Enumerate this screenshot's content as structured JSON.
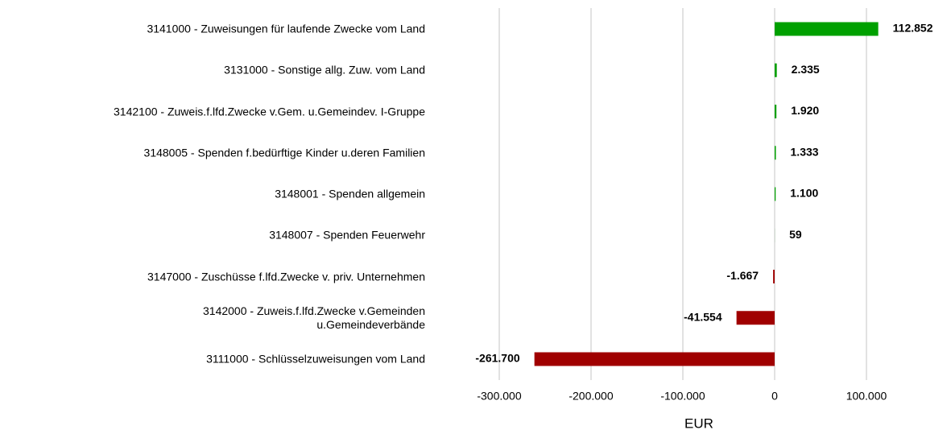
{
  "chart_data": {
    "type": "hbar",
    "categories": [
      "3141000 - Zuweisungen für laufende Zwecke vom Land",
      "3131000 - Sonstige allg. Zuw. vom Land",
      "3142100 - Zuweis.f.lfd.Zwecke v.Gem. u.Gemeindev. I-Gruppe",
      "3148005 - Spenden f.bedürftige Kinder u.deren Familien",
      "3148001 - Spenden allgemein",
      "3148007 - Spenden Feuerwehr",
      "3147000 - Zuschüsse f.lfd.Zwecke v. priv. Unternehmen",
      "3142000 - Zuweis.f.lfd.Zwecke v.Gemeinden\nu.Gemeindeverbände",
      "3111000 - Schlüsselzuweisungen vom Land"
    ],
    "values": [
      112852,
      2335,
      1920,
      1333,
      1100,
      59,
      -1667,
      -41554,
      -261700
    ],
    "value_labels": [
      "112.852",
      "2.335",
      "1.920",
      "1.333",
      "1.100",
      "59",
      "-1.667",
      "-41.554",
      "-261.700"
    ],
    "positive_color": "#00a000",
    "negative_color": "#a00000",
    "xlim": [
      -300000,
      150000
    ],
    "xticks": [
      {
        "value": -300000,
        "label": "-300.000"
      },
      {
        "value": -200000,
        "label": "-200.000"
      },
      {
        "value": -100000,
        "label": "-100.000"
      },
      0,
      {
        "value": 100000,
        "label": "100.000"
      }
    ],
    "xlabel": "EUR",
    "grid": true
  }
}
